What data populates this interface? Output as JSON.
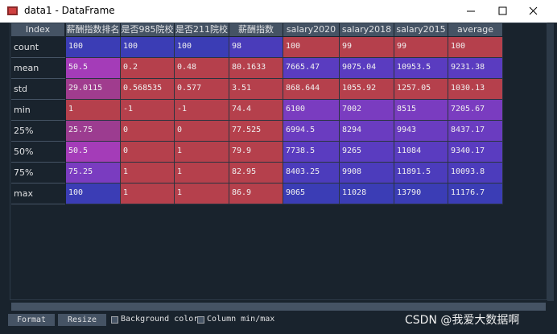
{
  "window": {
    "title": "data1 - DataFrame"
  },
  "table": {
    "index_header": "Index",
    "columns": [
      "薪酬指数排名",
      "是否985院校",
      "是否211院校",
      "薪酬指数",
      "salary2020",
      "salary2018",
      "salary2015",
      "average"
    ],
    "index": [
      "count",
      "mean",
      "std",
      "min",
      "25%",
      "50%",
      "75%",
      "max"
    ],
    "rows": [
      [
        "100",
        "100",
        "100",
        "98",
        "100",
        "99",
        "99",
        "100"
      ],
      [
        "50.5",
        "0.2",
        "0.48",
        "80.1633",
        "7665.47",
        "9075.04",
        "10953.5",
        "9231.38"
      ],
      [
        "29.0115",
        "0.568535",
        "0.577",
        "3.51",
        "868.644",
        "1055.92",
        "1257.05",
        "1030.13"
      ],
      [
        "1",
        "-1",
        "-1",
        "74.4",
        "6100",
        "7002",
        "8515",
        "7205.67"
      ],
      [
        "25.75",
        "0",
        "0",
        "77.525",
        "6994.5",
        "8294",
        "9943",
        "8437.17"
      ],
      [
        "50.5",
        "0",
        "1",
        "79.9",
        "7738.5",
        "9265",
        "11084",
        "9340.17"
      ],
      [
        "75.25",
        "1",
        "1",
        "82.95",
        "8403.25",
        "9908",
        "11891.5",
        "10093.8"
      ],
      [
        "100",
        "1",
        "1",
        "86.9",
        "9065",
        "11028",
        "13790",
        "11176.7"
      ]
    ],
    "cell_colors": [
      [
        "#3b3db5",
        "#3b3db5",
        "#3b3db5",
        "#4a3cba",
        "#b5404c",
        "#b5404c",
        "#b5404c",
        "#b5404c"
      ],
      [
        "#a43cb8",
        "#b5404c",
        "#b5404c",
        "#b5404c",
        "#5a3cc0",
        "#5a3cc0",
        "#5a3cc0",
        "#5a3cc0"
      ],
      [
        "#a03c8e",
        "#b5404c",
        "#b5404c",
        "#b5404c",
        "#b5404c",
        "#b5404c",
        "#b5404c",
        "#b5404c"
      ],
      [
        "#b5404c",
        "#b5404c",
        "#b5404c",
        "#b5404c",
        "#7a3cc0",
        "#7a3cc0",
        "#7a3cc0",
        "#7a3cc0"
      ],
      [
        "#9c3c90",
        "#b5404c",
        "#b5404c",
        "#b5404c",
        "#6a3cc0",
        "#6a3cc0",
        "#6a3cc0",
        "#6a3cc0"
      ],
      [
        "#a43cb8",
        "#b5404c",
        "#b5404c",
        "#b5404c",
        "#5a3cc0",
        "#5a3cc0",
        "#5a3cc0",
        "#5a3cc0"
      ],
      [
        "#7a3cc0",
        "#b5404c",
        "#b5404c",
        "#b5404c",
        "#4c3cbc",
        "#4c3cbc",
        "#4c3cbc",
        "#4c3cbc"
      ],
      [
        "#3b3db5",
        "#b5404c",
        "#b5404c",
        "#b5404c",
        "#3b3db5",
        "#3b3db5",
        "#3b3db5",
        "#3b3db5"
      ]
    ]
  },
  "toolbar": {
    "format": "Format",
    "resize": "Resize",
    "background_color": "Background color",
    "column_minmax": "Column min/max"
  },
  "watermark": "CSDN @我爱大数据啊"
}
